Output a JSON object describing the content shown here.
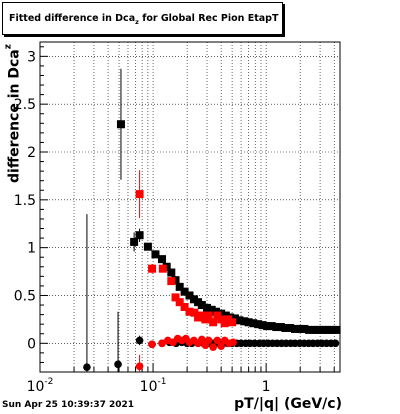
{
  "chart_data": {
    "type": "scatter",
    "title_main": "Fitted difference in Dca",
    "title_sub": "z",
    "title_rest": " for Global Rec Pion EtapT",
    "ylabel_main": "difference in Dca",
    "ylabel_sub": "z",
    "xlabel": "pT/|q| (GeV/c)",
    "x_scale": "log",
    "xlim": [
      0.01,
      4.5
    ],
    "ylim": [
      -0.3,
      3.15
    ],
    "grid": true,
    "x_ticks": [
      {
        "value": 0.01,
        "label": "10^-2"
      },
      {
        "value": 0.1,
        "label": "10^-1"
      },
      {
        "value": 1,
        "label": "1"
      }
    ],
    "y_ticks": [
      0,
      0.5,
      1,
      1.5,
      2,
      2.5,
      3
    ],
    "y_tick_labels": [
      "0",
      "0.5",
      "1",
      "1.5",
      "2",
      "2.5",
      "3"
    ],
    "series": [
      {
        "marker": "square",
        "color": "#000000",
        "points": [
          [
            0.052,
            2.29,
            0.58
          ],
          [
            0.068,
            1.06,
            0.1
          ],
          [
            0.076,
            1.13,
            0.07
          ],
          [
            0.09,
            1.01,
            0.04
          ],
          [
            0.105,
            0.93,
            0.03
          ],
          [
            0.12,
            0.88,
            0.03
          ],
          [
            0.132,
            0.8,
            0.02
          ],
          [
            0.145,
            0.74,
            0.02
          ],
          [
            0.158,
            0.66,
            0.02
          ],
          [
            0.172,
            0.59,
            0.02
          ],
          [
            0.19,
            0.54,
            0.02
          ],
          [
            0.21,
            0.5,
            0.02
          ],
          [
            0.23,
            0.46,
            0.02
          ],
          [
            0.25,
            0.43,
            0.02
          ],
          [
            0.27,
            0.4,
            0.02
          ],
          [
            0.3,
            0.37,
            0.02
          ],
          [
            0.33,
            0.35,
            0.02
          ],
          [
            0.36,
            0.33,
            0.02
          ],
          [
            0.4,
            0.31,
            0.02
          ],
          [
            0.44,
            0.29,
            0.02
          ],
          [
            0.48,
            0.27,
            0.02
          ],
          [
            0.53,
            0.26,
            0.02
          ],
          [
            0.58,
            0.24,
            0.02
          ],
          [
            0.64,
            0.23,
            0.02
          ],
          [
            0.7,
            0.22,
            0.02
          ],
          [
            0.77,
            0.21,
            0.02
          ],
          [
            0.85,
            0.2,
            0.02
          ],
          [
            0.93,
            0.19,
            0.02
          ],
          [
            1.02,
            0.18,
            0.02
          ],
          [
            1.12,
            0.18,
            0.02
          ],
          [
            1.23,
            0.17,
            0.02
          ],
          [
            1.35,
            0.17,
            0.02
          ],
          [
            1.48,
            0.16,
            0.02
          ],
          [
            1.63,
            0.16,
            0.02
          ],
          [
            1.8,
            0.15,
            0.02
          ],
          [
            1.98,
            0.15,
            0.02
          ],
          [
            2.18,
            0.15,
            0.02
          ],
          [
            2.4,
            0.14,
            0.02
          ],
          [
            2.65,
            0.14,
            0.02
          ],
          [
            2.9,
            0.14,
            0.02
          ],
          [
            3.2,
            0.14,
            0.02
          ],
          [
            3.5,
            0.14,
            0.02
          ],
          [
            3.85,
            0.14,
            0.02
          ],
          [
            4.2,
            0.14,
            0.02
          ]
        ]
      },
      {
        "marker": "square",
        "color": "#ff0000",
        "points": [
          [
            0.076,
            1.56,
            0.25
          ],
          [
            0.098,
            0.78,
            0.05
          ],
          [
            0.122,
            0.78,
            0.04
          ],
          [
            0.145,
            0.65,
            0.03
          ],
          [
            0.158,
            0.48,
            0.03
          ],
          [
            0.172,
            0.43,
            0.03
          ],
          [
            0.19,
            0.38,
            0.03
          ],
          [
            0.21,
            0.33,
            0.03
          ],
          [
            0.232,
            0.32,
            0.03
          ],
          [
            0.25,
            0.27,
            0.03
          ],
          [
            0.27,
            0.29,
            0.03
          ],
          [
            0.29,
            0.25,
            0.03
          ],
          [
            0.31,
            0.29,
            0.03
          ],
          [
            0.34,
            0.22,
            0.03
          ],
          [
            0.37,
            0.29,
            0.03
          ],
          [
            0.4,
            0.25,
            0.03
          ],
          [
            0.43,
            0.21,
            0.03
          ],
          [
            0.46,
            0.25,
            0.03
          ],
          [
            0.5,
            0.22,
            0.03
          ]
        ]
      },
      {
        "marker": "circle",
        "color": "#000000",
        "points": [
          [
            0.026,
            -0.25,
            1.6
          ],
          [
            0.049,
            -0.22,
            0.55
          ],
          [
            0.076,
            0.03,
            0.05
          ],
          [
            0.098,
            -0.01,
            0.03
          ],
          [
            0.12,
            0.0,
            0.02
          ],
          [
            0.14,
            0.01,
            0.02
          ],
          [
            0.16,
            0.0,
            0.02
          ],
          [
            0.18,
            0.01,
            0.02
          ],
          [
            0.2,
            0.0,
            0.02
          ],
          [
            0.22,
            0.0,
            0.02
          ],
          [
            0.25,
            0.0,
            0.02
          ],
          [
            0.28,
            0.0,
            0.02
          ],
          [
            0.31,
            0.0,
            0.02
          ],
          [
            0.34,
            0.0,
            0.02
          ],
          [
            0.38,
            0.0,
            0.02
          ],
          [
            0.42,
            0.0,
            0.02
          ],
          [
            0.46,
            0.0,
            0.02
          ],
          [
            0.5,
            0.0,
            0.02
          ],
          [
            0.55,
            0.0,
            0.02
          ],
          [
            0.6,
            0.0,
            0.02
          ],
          [
            0.66,
            0.0,
            0.02
          ],
          [
            0.72,
            0.0,
            0.02
          ],
          [
            0.79,
            0.0,
            0.02
          ],
          [
            0.87,
            0.0,
            0.02
          ],
          [
            0.95,
            0.0,
            0.02
          ],
          [
            1.04,
            0.0,
            0.02
          ],
          [
            1.14,
            0.0,
            0.02
          ],
          [
            1.25,
            0.0,
            0.02
          ],
          [
            1.37,
            0.0,
            0.02
          ],
          [
            1.5,
            0.0,
            0.02
          ],
          [
            1.65,
            0.0,
            0.02
          ],
          [
            1.8,
            0.0,
            0.02
          ],
          [
            1.98,
            0.0,
            0.02
          ],
          [
            2.17,
            0.0,
            0.02
          ],
          [
            2.38,
            0.0,
            0.02
          ],
          [
            2.6,
            0.0,
            0.02
          ],
          [
            2.85,
            0.0,
            0.02
          ],
          [
            3.12,
            0.0,
            0.02
          ],
          [
            3.42,
            0.0,
            0.02
          ],
          [
            3.75,
            0.0,
            0.02
          ],
          [
            4.1,
            0.0,
            0.02
          ]
        ]
      },
      {
        "marker": "circle",
        "color": "#ff0000",
        "points": [
          [
            0.076,
            -0.24,
            0.12
          ],
          [
            0.098,
            -0.01,
            0.04
          ],
          [
            0.12,
            0.0,
            0.03
          ],
          [
            0.135,
            0.03,
            0.03
          ],
          [
            0.15,
            0.01,
            0.03
          ],
          [
            0.165,
            0.05,
            0.03
          ],
          [
            0.18,
            0.03,
            0.03
          ],
          [
            0.195,
            0.05,
            0.03
          ],
          [
            0.21,
            0.01,
            0.03
          ],
          [
            0.23,
            0.03,
            0.03
          ],
          [
            0.25,
            0.0,
            0.03
          ],
          [
            0.27,
            0.04,
            0.03
          ],
          [
            0.29,
            -0.02,
            0.03
          ],
          [
            0.31,
            0.03,
            0.03
          ],
          [
            0.34,
            -0.04,
            0.03
          ],
          [
            0.37,
            0.03,
            0.03
          ],
          [
            0.4,
            -0.03,
            0.03
          ],
          [
            0.43,
            0.03,
            0.03
          ],
          [
            0.47,
            0.0,
            0.03
          ],
          [
            0.51,
            0.01,
            0.03
          ]
        ]
      }
    ]
  },
  "footer": "Sun Apr 25 10:39:37 2021"
}
